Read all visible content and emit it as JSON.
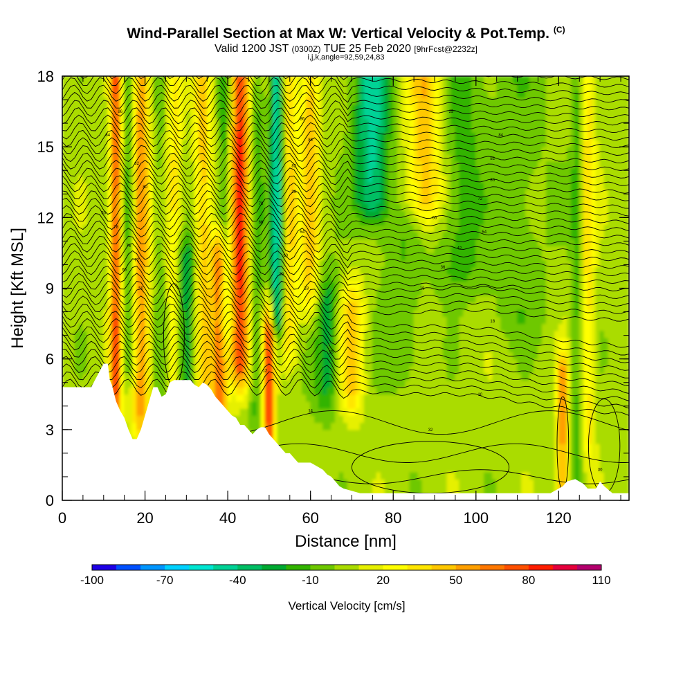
{
  "header": {
    "title": "Wind-Parallel Section at Max W: Vertical Velocity & Pot.Temp.",
    "title_mark": "(C)",
    "subtitle_a": "Valid 1200 JST",
    "subtitle_b": "(0300Z)",
    "subtitle_c": "TUE 25 Feb 2020",
    "subtitle_d": "[9hrFcst@2232z]",
    "subtitle_line3": "i,j,k,angle=92,59,24,83"
  },
  "chart_data": {
    "type": "heatmap",
    "title": "Wind-Parallel Section at Max W: Vertical Velocity & Pot.Temp.",
    "xlabel": "Distance [nm]",
    "ylabel": "Height [Kft MSL]",
    "xlim": [
      0,
      137
    ],
    "ylim": [
      0,
      18
    ],
    "x_ticks": [
      "0",
      "20",
      "40",
      "60",
      "80",
      "100",
      "120"
    ],
    "x_tick_values": [
      0,
      20,
      40,
      60,
      80,
      100,
      120
    ],
    "y_ticks": [
      "0",
      "3",
      "6",
      "9",
      "12",
      "15",
      "18"
    ],
    "y_tick_values": [
      0,
      3,
      6,
      9,
      12,
      15,
      18
    ],
    "colorbar": {
      "label": "Vertical Velocity [cm/s]",
      "min": -100,
      "max": 110,
      "step": 10,
      "tick_labels": [
        "-100",
        "-70",
        "-40",
        "-10",
        "20",
        "50",
        "80",
        "110"
      ],
      "tick_values": [
        -100,
        -70,
        -40,
        -10,
        20,
        50,
        80,
        110
      ],
      "colors": [
        "#1e00e6",
        "#0050ff",
        "#0096ff",
        "#00d2ff",
        "#00e6d2",
        "#00d296",
        "#00be64",
        "#00aa32",
        "#32b400",
        "#6ec800",
        "#aadc00",
        "#e6f000",
        "#ffff00",
        "#ffe600",
        "#ffc800",
        "#ffa000",
        "#ff7800",
        "#ff5000",
        "#ff1e00",
        "#e6003c",
        "#b4006e",
        "#6e00a0"
      ]
    },
    "terrain_top_kft": [
      [
        0,
        4.8
      ],
      [
        7,
        4.8
      ],
      [
        10,
        5.8
      ],
      [
        11,
        5.8
      ],
      [
        11.5,
        5.1
      ],
      [
        12,
        4.9
      ],
      [
        13,
        4.2
      ],
      [
        14,
        3.8
      ],
      [
        15,
        3.5
      ],
      [
        16,
        3.0
      ],
      [
        17,
        2.6
      ],
      [
        18,
        2.6
      ],
      [
        19,
        3.0
      ],
      [
        20,
        3.6
      ],
      [
        21,
        4.2
      ],
      [
        22,
        4.8
      ],
      [
        23,
        4.8
      ],
      [
        24,
        4.4
      ],
      [
        25,
        4.5
      ],
      [
        26,
        5.0
      ],
      [
        27,
        5.1
      ],
      [
        29,
        5.1
      ],
      [
        31,
        5.1
      ],
      [
        32,
        4.9
      ],
      [
        33,
        4.8
      ],
      [
        34,
        5.0
      ],
      [
        35,
        4.9
      ],
      [
        36,
        4.7
      ],
      [
        37,
        4.4
      ],
      [
        38,
        4.2
      ],
      [
        39,
        4.0
      ],
      [
        40,
        3.8
      ],
      [
        41,
        3.6
      ],
      [
        42,
        3.5
      ],
      [
        43,
        3.2
      ],
      [
        44,
        3.2
      ],
      [
        45,
        3.0
      ],
      [
        46,
        2.8
      ],
      [
        47,
        3.0
      ],
      [
        48,
        3.1
      ],
      [
        49,
        3.1
      ],
      [
        50,
        2.8
      ],
      [
        51,
        2.6
      ],
      [
        52,
        2.4
      ],
      [
        53,
        2.2
      ],
      [
        54,
        2.0
      ],
      [
        55,
        2.0
      ],
      [
        56,
        1.8
      ],
      [
        57,
        1.6
      ],
      [
        58,
        1.6
      ],
      [
        60,
        1.6
      ],
      [
        61,
        1.5
      ],
      [
        62,
        1.4
      ],
      [
        63,
        1.3
      ],
      [
        64,
        1.1
      ],
      [
        65,
        1.0
      ],
      [
        66,
        0.8
      ],
      [
        67,
        0.6
      ],
      [
        68,
        0.5
      ],
      [
        70,
        0.4
      ],
      [
        72,
        0.3
      ],
      [
        118,
        0.3
      ],
      [
        119,
        0.4
      ],
      [
        121,
        0.6
      ],
      [
        122,
        0.8
      ],
      [
        124,
        0.9
      ],
      [
        126,
        0.7
      ],
      [
        127,
        0.5
      ],
      [
        129,
        0.5
      ],
      [
        130,
        0.8
      ],
      [
        131,
        0.6
      ],
      [
        133,
        0.3
      ],
      [
        137,
        0.3
      ]
    ],
    "contour_labels": [
      {
        "x": 14,
        "y": 16.5,
        "label": "86"
      },
      {
        "x": 11,
        "y": 15.5,
        "label": "84"
      },
      {
        "x": 18,
        "y": 14.3,
        "label": "82"
      },
      {
        "x": 20,
        "y": 13.3,
        "label": "80"
      },
      {
        "x": 10,
        "y": 12.2,
        "label": "60"
      },
      {
        "x": 13,
        "y": 11.6,
        "label": "78"
      },
      {
        "x": 16,
        "y": 10.8,
        "label": "76"
      },
      {
        "x": 18,
        "y": 10.2,
        "label": "72"
      },
      {
        "x": 15,
        "y": 9.8,
        "label": "66"
      },
      {
        "x": 19,
        "y": 9.0,
        "label": "50"
      },
      {
        "x": 58,
        "y": 16.2,
        "label": "86"
      },
      {
        "x": 60,
        "y": 15.3,
        "label": "84"
      },
      {
        "x": 56,
        "y": 14.2,
        "label": "82"
      },
      {
        "x": 56,
        "y": 13.1,
        "label": "30"
      },
      {
        "x": 48,
        "y": 12.6,
        "label": "78"
      },
      {
        "x": 48,
        "y": 11.8,
        "label": "66"
      },
      {
        "x": 58,
        "y": 11.4,
        "label": "54"
      },
      {
        "x": 54,
        "y": 10.4,
        "label": "60"
      },
      {
        "x": 53,
        "y": 9.6,
        "label": "30"
      },
      {
        "x": 59,
        "y": 9.0,
        "label": "18"
      },
      {
        "x": 94,
        "y": 16.5,
        "label": "25"
      },
      {
        "x": 106,
        "y": 15.5,
        "label": "84"
      },
      {
        "x": 104,
        "y": 14.5,
        "label": "82"
      },
      {
        "x": 104,
        "y": 13.6,
        "label": "80"
      },
      {
        "x": 101,
        "y": 12.8,
        "label": "72"
      },
      {
        "x": 90,
        "y": 12.0,
        "label": "66"
      },
      {
        "x": 102,
        "y": 11.4,
        "label": "54"
      },
      {
        "x": 96,
        "y": 10.7,
        "label": "42"
      },
      {
        "x": 92,
        "y": 9.9,
        "label": "36"
      },
      {
        "x": 87,
        "y": 9.0,
        "label": "18"
      },
      {
        "x": 104,
        "y": 7.6,
        "label": "18"
      },
      {
        "x": 65,
        "y": 6.3,
        "label": "15"
      },
      {
        "x": 49,
        "y": 5.5,
        "label": "12"
      },
      {
        "x": 60,
        "y": 3.8,
        "label": "14"
      },
      {
        "x": 101,
        "y": 4.5,
        "label": "10"
      },
      {
        "x": 89,
        "y": 3.0,
        "label": "32"
      },
      {
        "x": 130,
        "y": 1.3,
        "label": "30"
      }
    ]
  }
}
